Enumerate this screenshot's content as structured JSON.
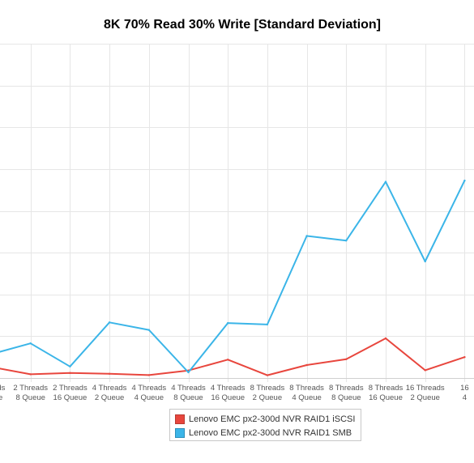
{
  "chart_data": {
    "type": "line",
    "title": "8K 70% Read 30% Write [Standard Deviation]",
    "categories": [
      [
        "Threads",
        "Queue"
      ],
      [
        "2 Threads",
        "8 Queue"
      ],
      [
        "2 Threads",
        "16 Queue"
      ],
      [
        "4 Threads",
        "2 Queue"
      ],
      [
        "4 Threads",
        "4 Queue"
      ],
      [
        "4 Threads",
        "8 Queue"
      ],
      [
        "4 Threads",
        "16 Queue"
      ],
      [
        "8 Threads",
        "2 Queue"
      ],
      [
        "8 Threads",
        "4 Queue"
      ],
      [
        "8 Threads",
        "8 Queue"
      ],
      [
        "8 Threads",
        "16 Queue"
      ],
      [
        "16 Threads",
        "2 Queue"
      ],
      [
        "16",
        "4"
      ]
    ],
    "series": [
      {
        "name": "Lenovo EMC px2-300d NVR RAID1 iSCSI",
        "color": "#e8463d",
        "values": [
          0.53,
          0.18,
          0.24,
          0.2,
          0.14,
          0.36,
          0.88,
          0.13,
          0.62,
          0.9,
          1.9,
          0.37,
          1.0
        ]
      },
      {
        "name": "Lenovo EMC px2-300d NVR RAID1 SMB",
        "color": "#3bb5e8",
        "values": [
          1.14,
          1.66,
          0.55,
          2.66,
          2.3,
          0.27,
          2.63,
          2.56,
          6.8,
          6.58,
          9.39,
          5.58,
          9.45
        ]
      }
    ],
    "ylim": [
      0,
      16
    ],
    "grid": true,
    "legend_placement": "bottom-center"
  }
}
